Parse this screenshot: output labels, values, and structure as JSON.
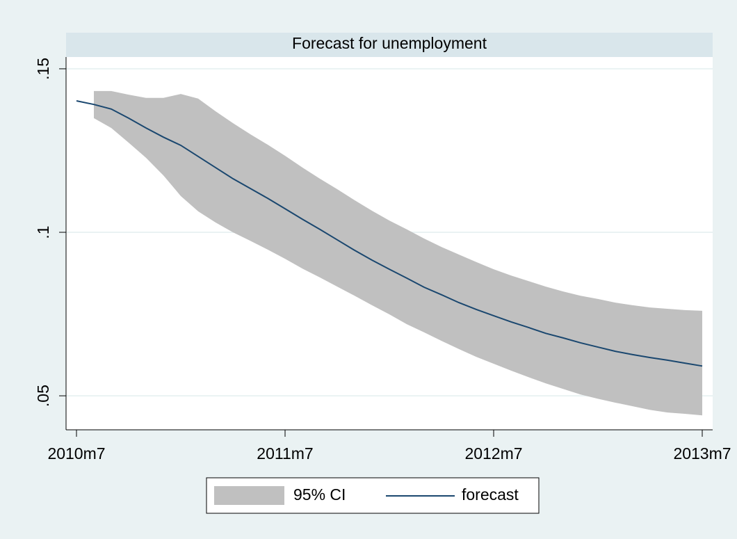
{
  "chart_data": {
    "type": "line",
    "title": "Forecast for unemployment",
    "categories": [
      "2010m7",
      null,
      null,
      null,
      null,
      null,
      null,
      null,
      null,
      null,
      null,
      null,
      "2011m7",
      null,
      null,
      null,
      null,
      null,
      null,
      null,
      null,
      null,
      null,
      null,
      "2012m7",
      null,
      null,
      null,
      null,
      null,
      null,
      null,
      null,
      null,
      null,
      null,
      "2013m7"
    ],
    "series": [
      {
        "name": "95% CI",
        "color": "#c0c0c0",
        "upper": [
          null,
          0.1432,
          0.1432,
          0.1421,
          0.1411,
          0.1411,
          0.1423,
          0.1409,
          0.137,
          0.1334,
          0.13,
          0.1268,
          0.1234,
          0.1198,
          0.1164,
          0.1132,
          0.1098,
          0.1066,
          0.1036,
          0.1009,
          0.0981,
          0.0955,
          0.0932,
          0.0909,
          0.0887,
          0.0868,
          0.0851,
          0.0834,
          0.0819,
          0.0806,
          0.0796,
          0.0785,
          0.0777,
          0.077,
          0.0766,
          0.0762,
          0.076
        ],
        "lower": [
          null,
          0.1349,
          0.1319,
          0.1274,
          0.1228,
          0.1174,
          0.1111,
          0.1064,
          0.103,
          0.1,
          0.0974,
          0.0947,
          0.0919,
          0.0889,
          0.0862,
          0.0834,
          0.0806,
          0.0777,
          0.0749,
          0.0719,
          0.0694,
          0.0668,
          0.0643,
          0.0619,
          0.0598,
          0.0577,
          0.0557,
          0.0538,
          0.0521,
          0.0504,
          0.0491,
          0.0479,
          0.0468,
          0.0457,
          0.0449,
          0.0445,
          0.044
        ]
      },
      {
        "name": "forecast",
        "color": "#1a476f",
        "values": [
          0.1402,
          0.1391,
          0.1377,
          0.1349,
          0.1319,
          0.1291,
          0.1266,
          0.1232,
          0.1198,
          0.1164,
          0.1134,
          0.1104,
          0.1072,
          0.104,
          0.1009,
          0.0977,
          0.0945,
          0.0915,
          0.0887,
          0.086,
          0.0832,
          0.0809,
          0.0785,
          0.0764,
          0.0745,
          0.0726,
          0.0709,
          0.0691,
          0.0677,
          0.0662,
          0.0649,
          0.0636,
          0.0626,
          0.0617,
          0.0609,
          0.06,
          0.0591
        ]
      }
    ],
    "ylim": [
      0.0396,
      0.1536
    ],
    "yticks": [
      {
        "value": 0.05,
        "label": ".05"
      },
      {
        "value": 0.1,
        "label": ".1"
      },
      {
        "value": 0.15,
        "label": ".15"
      }
    ],
    "grid": true
  }
}
